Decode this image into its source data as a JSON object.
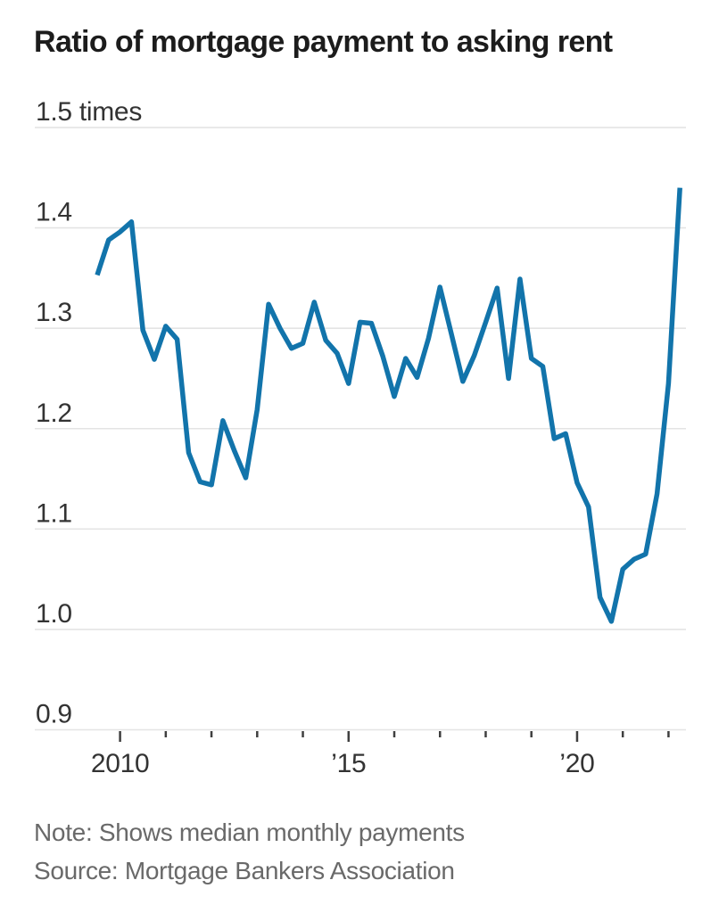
{
  "title": "Ratio of mortgage payment to asking rent",
  "note": "Note: Shows median monthly payments",
  "source": "Source: Mortgage Bankers Association",
  "chart_data": {
    "type": "line",
    "title": "Ratio of mortgage payment to asking rent",
    "xlabel": "",
    "ylabel": "times",
    "ylim": [
      0.9,
      1.5
    ],
    "grid": true,
    "legend_position": "none",
    "y_ticks": [
      {
        "value": 1.5,
        "label": "1.5 times"
      },
      {
        "value": 1.4,
        "label": "1.4"
      },
      {
        "value": 1.3,
        "label": "1.3"
      },
      {
        "value": 1.2,
        "label": "1.2"
      },
      {
        "value": 1.1,
        "label": "1.1"
      },
      {
        "value": 1.0,
        "label": "1.0"
      },
      {
        "value": 0.9,
        "label": "0.9"
      }
    ],
    "x_ticks": [
      {
        "year": 2010,
        "label": "2010",
        "major": true
      },
      {
        "year": 2011,
        "label": "",
        "major": false
      },
      {
        "year": 2012,
        "label": "",
        "major": false
      },
      {
        "year": 2013,
        "label": "",
        "major": false
      },
      {
        "year": 2014,
        "label": "",
        "major": false
      },
      {
        "year": 2015,
        "label": "’15",
        "major": true
      },
      {
        "year": 2016,
        "label": "",
        "major": false
      },
      {
        "year": 2017,
        "label": "",
        "major": false
      },
      {
        "year": 2018,
        "label": "",
        "major": false
      },
      {
        "year": 2019,
        "label": "",
        "major": false
      },
      {
        "year": 2020,
        "label": "’20",
        "major": true
      },
      {
        "year": 2021,
        "label": "",
        "major": false
      },
      {
        "year": 2022,
        "label": "",
        "major": false
      }
    ],
    "x_quarters": [
      "2009 Q3",
      "2009 Q4",
      "2010 Q1",
      "2010 Q2",
      "2010 Q3",
      "2010 Q4",
      "2011 Q1",
      "2011 Q2",
      "2011 Q3",
      "2011 Q4",
      "2012 Q1",
      "2012 Q2",
      "2012 Q3",
      "2012 Q4",
      "2013 Q1",
      "2013 Q2",
      "2013 Q3",
      "2013 Q4",
      "2014 Q1",
      "2014 Q2",
      "2014 Q3",
      "2014 Q4",
      "2015 Q1",
      "2015 Q2",
      "2015 Q3",
      "2015 Q4",
      "2016 Q1",
      "2016 Q2",
      "2016 Q3",
      "2016 Q4",
      "2017 Q1",
      "2017 Q2",
      "2017 Q3",
      "2017 Q4",
      "2018 Q1",
      "2018 Q2",
      "2018 Q3",
      "2018 Q4",
      "2019 Q1",
      "2019 Q2",
      "2019 Q3",
      "2019 Q4",
      "2020 Q1",
      "2020 Q2",
      "2020 Q3",
      "2020 Q4",
      "2021 Q1",
      "2021 Q2",
      "2021 Q3",
      "2021 Q4",
      "2022 Q1",
      "2022 Q2"
    ],
    "values": [
      1.353,
      1.388,
      1.396,
      1.406,
      1.298,
      1.269,
      1.302,
      1.289,
      1.176,
      1.147,
      1.144,
      1.208,
      1.178,
      1.151,
      1.219,
      1.324,
      1.3,
      1.28,
      1.285,
      1.326,
      1.288,
      1.275,
      1.245,
      1.306,
      1.305,
      1.272,
      1.232,
      1.27,
      1.251,
      1.29,
      1.341,
      1.294,
      1.247,
      1.273,
      1.306,
      1.34,
      1.25,
      1.349,
      1.27,
      1.262,
      1.19,
      1.195,
      1.146,
      1.122,
      1.032,
      1.008,
      1.06,
      1.07,
      1.075,
      1.135,
      1.245,
      1.44
    ],
    "colors": {
      "line": "#1274ab",
      "grid": "#e4e4e4",
      "tick": "#3f3f3f",
      "axis_label": "#333333",
      "title": "#1c1c1c",
      "note": "#696969"
    }
  }
}
